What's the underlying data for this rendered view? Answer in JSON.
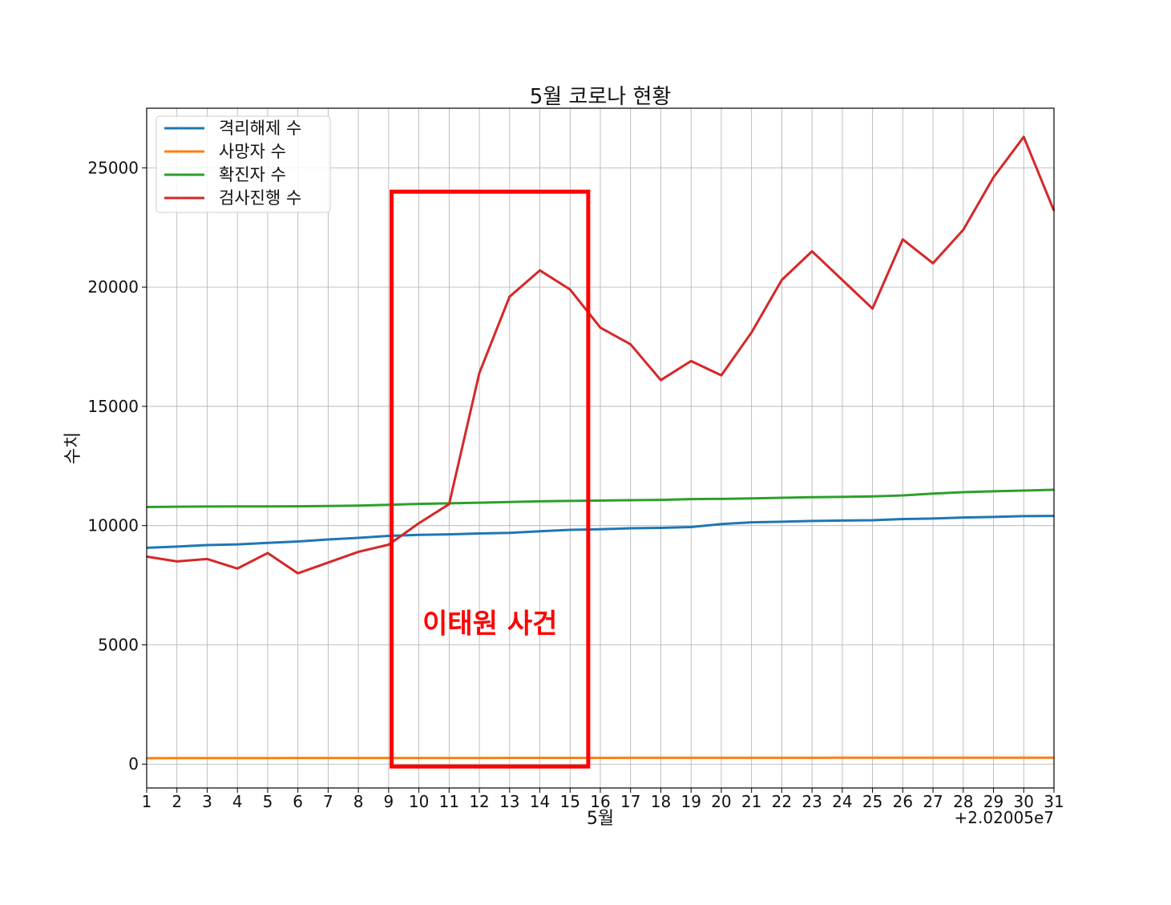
{
  "chart_data": {
    "type": "line",
    "title": "5월 코로나 현황",
    "xlabel": "5월",
    "ylabel": "수치",
    "x_offset_label": "+2.02005e7",
    "x": [
      1,
      2,
      3,
      4,
      5,
      6,
      7,
      8,
      9,
      10,
      11,
      12,
      13,
      14,
      15,
      16,
      17,
      18,
      19,
      20,
      21,
      22,
      23,
      24,
      25,
      26,
      27,
      28,
      29,
      30,
      31
    ],
    "xlim": [
      1,
      31
    ],
    "ylim": [
      -1000,
      27500
    ],
    "y_ticks": [
      0,
      5000,
      10000,
      15000,
      20000,
      25000
    ],
    "grid": true,
    "legend_position": "top-left",
    "series": [
      {
        "name": "격리해제 수",
        "color": "#1f77b4",
        "values": [
          9072,
          9120,
          9183,
          9213,
          9275,
          9333,
          9419,
          9484,
          9568,
          9610,
          9632,
          9670,
          9695,
          9762,
          9821,
          9847,
          9888,
          9904,
          9938,
          10066,
          10135,
          10162,
          10194,
          10213,
          10226,
          10275,
          10295,
          10340,
          10363,
          10398,
          10405
        ]
      },
      {
        "name": "사망자 수",
        "color": "#ff7f0e",
        "values": [
          248,
          250,
          250,
          252,
          254,
          255,
          255,
          256,
          256,
          256,
          256,
          258,
          259,
          260,
          262,
          262,
          263,
          263,
          263,
          264,
          264,
          266,
          266,
          267,
          269,
          269,
          269,
          269,
          269,
          269,
          270
        ]
      },
      {
        "name": "확진자 수",
        "color": "#2ca02c",
        "values": [
          10780,
          10793,
          10801,
          10804,
          10806,
          10810,
          10822,
          10840,
          10874,
          10909,
          10936,
          10962,
          10991,
          11018,
          11037,
          11050,
          11065,
          11078,
          11110,
          11122,
          11142,
          11165,
          11190,
          11206,
          11225,
          11265,
          11344,
          11402,
          11441,
          11468,
          11503
        ]
      },
      {
        "name": "검사진행 수",
        "color": "#d62728",
        "values": [
          8700,
          8500,
          8600,
          8200,
          8850,
          8000,
          8450,
          8900,
          9200,
          10100,
          10900,
          16400,
          19600,
          20700,
          19900,
          18300,
          17600,
          16100,
          16900,
          16300,
          18100,
          20300,
          21500,
          20300,
          19100,
          22000,
          21000,
          22400,
          24600,
          26300,
          23200
        ]
      }
    ],
    "annotation": {
      "text": "이태원 사건",
      "color": "#ff0000",
      "x_range": [
        9.1,
        15.6
      ],
      "y_range": [
        -100,
        24000
      ]
    }
  }
}
